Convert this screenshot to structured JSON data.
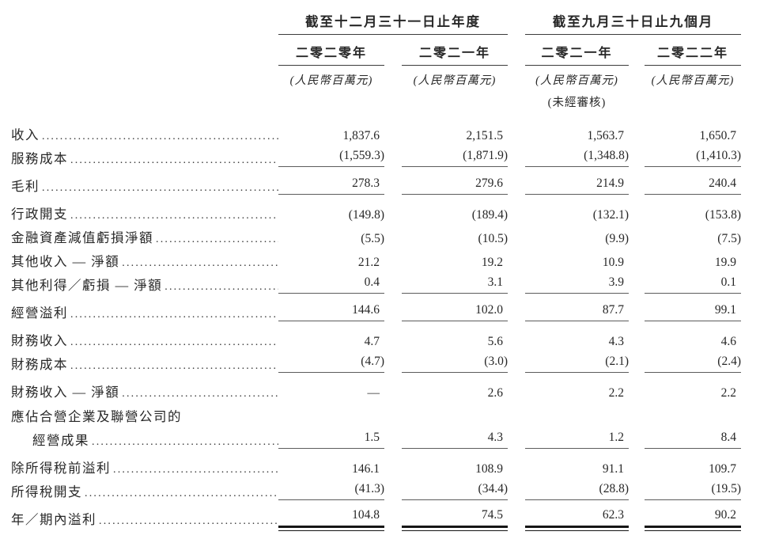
{
  "header": {
    "groups": [
      {
        "title": "截至十二月三十一日止年度",
        "columns": [
          {
            "year": "二零二零年",
            "unit": "(人民幣百萬元)",
            "note": ""
          },
          {
            "year": "二零二一年",
            "unit": "(人民幣百萬元)",
            "note": ""
          }
        ]
      },
      {
        "title": "截至九月三十日止九個月",
        "columns": [
          {
            "year": "二零二一年",
            "unit": "(人民幣百萬元)",
            "note": "(未經審核)"
          },
          {
            "year": "二零二二年",
            "unit": "(人民幣百萬元)",
            "note": ""
          }
        ]
      }
    ]
  },
  "rows": [
    {
      "label": "收入",
      "values": [
        "1,837.6",
        "2,151.5",
        "1,563.7",
        "1,650.7"
      ]
    },
    {
      "label": "服務成本",
      "values": [
        "(1,559.3)",
        "(1,871.9)",
        "(1,348.8)",
        "(1,410.3)"
      ]
    },
    {
      "label": "毛利",
      "values": [
        "278.3",
        "279.6",
        "214.9",
        "240.4"
      ]
    },
    {
      "label": "行政開支",
      "values": [
        "(149.8)",
        "(189.4)",
        "(132.1)",
        "(153.8)"
      ]
    },
    {
      "label": "金融資產減值虧損淨額",
      "values": [
        "(5.5)",
        "(10.5)",
        "(9.9)",
        "(7.5)"
      ]
    },
    {
      "label": "其他收入 — 淨額",
      "values": [
        "21.2",
        "19.2",
        "10.9",
        "19.9"
      ]
    },
    {
      "label": "其他利得／虧損 — 淨額",
      "values": [
        "0.4",
        "3.1",
        "3.9",
        "0.1"
      ]
    },
    {
      "label": "經營溢利",
      "values": [
        "144.6",
        "102.0",
        "87.7",
        "99.1"
      ]
    },
    {
      "label": "財務收入",
      "values": [
        "4.7",
        "5.6",
        "4.3",
        "4.6"
      ]
    },
    {
      "label": "財務成本",
      "values": [
        "(4.7)",
        "(3.0)",
        "(2.1)",
        "(2.4)"
      ]
    },
    {
      "label": "財務收入 — 淨額",
      "values": [
        "—",
        "2.6",
        "2.2",
        "2.2"
      ]
    },
    {
      "label": "應佔合營企業及聯營公司的",
      "values": [
        "",
        "",
        "",
        ""
      ]
    },
    {
      "label": "經營成果",
      "values": [
        "1.5",
        "4.3",
        "1.2",
        "8.4"
      ]
    },
    {
      "label": "除所得稅前溢利",
      "values": [
        "146.1",
        "108.9",
        "91.1",
        "109.7"
      ]
    },
    {
      "label": "所得稅開支",
      "values": [
        "(41.3)",
        "(34.4)",
        "(28.8)",
        "(19.5)"
      ]
    },
    {
      "label": "年／期內溢利",
      "values": [
        "104.8",
        "74.5",
        "62.3",
        "90.2"
      ]
    }
  ]
}
